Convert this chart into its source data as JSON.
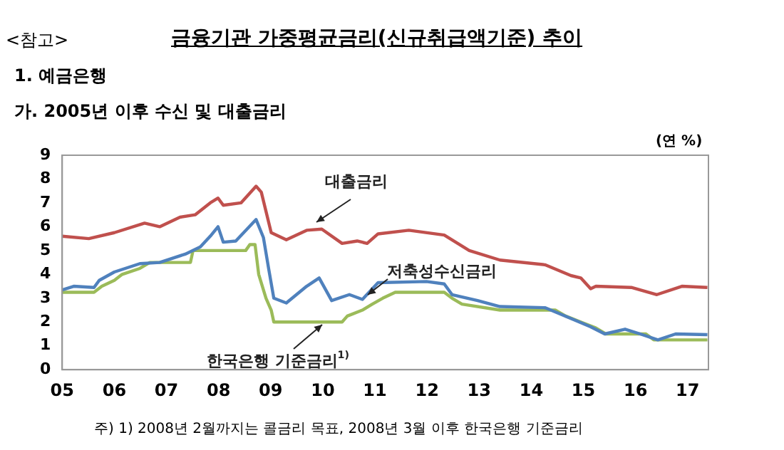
{
  "chart_data": {
    "type": "line",
    "title": "금융기관 가중평균금리(신규취급액기준) 추이",
    "subtitle": "1. 예금은행",
    "ylabel": "(연 %)",
    "annotations": [
      "<참고>",
      "가. 2005년 이후 수신 및 대출금리",
      "주) 1) 2008년 2월까지는 콜금리 목표, 2008년 3월 이후 한국은행 기준금리"
    ],
    "xlim": [
      2005,
      2017.4
    ],
    "xticks": [
      {
        "value": 2005,
        "label": "05"
      },
      {
        "value": 2006,
        "label": "06"
      },
      {
        "value": 2007,
        "label": "07"
      },
      {
        "value": 2008,
        "label": "08"
      },
      {
        "value": 2009,
        "label": "09"
      },
      {
        "value": 2010,
        "label": "10"
      },
      {
        "value": 2011,
        "label": "11"
      },
      {
        "value": 2012,
        "label": "12"
      },
      {
        "value": 2013,
        "label": "13"
      },
      {
        "value": 2014,
        "label": "14"
      },
      {
        "value": 2015,
        "label": "15"
      },
      {
        "value": 2016,
        "label": "16"
      },
      {
        "value": 2017,
        "label": "17"
      }
    ],
    "ylim": [
      0,
      9
    ],
    "yticks": [
      0,
      1,
      2,
      3,
      4,
      5,
      6,
      7,
      8,
      9
    ],
    "grid": false,
    "legend": false,
    "marker": "none",
    "line_style": "solid",
    "series": [
      {
        "name": "대출금리",
        "color": "#c0504d",
        "x": [
          2005,
          2005.51,
          2006,
          2006.58,
          2006.87,
          2007.26,
          2007.55,
          2007.84,
          2007.99,
          2008.09,
          2008.43,
          2008.72,
          2008.82,
          2009.01,
          2009.3,
          2009.69,
          2009.98,
          2010.37,
          2010.66,
          2010.85,
          2011.06,
          2011.65,
          2012.33,
          2012.81,
          2013.4,
          2014.27,
          2014.76,
          2014.95,
          2015.14,
          2015.24,
          2015.92,
          2016.41,
          2016.89,
          2017.38
        ],
        "values": [
          5.6,
          5.5,
          5.75,
          6.15,
          6.0,
          6.4,
          6.5,
          7.0,
          7.2,
          6.9,
          7.0,
          7.7,
          7.45,
          5.75,
          5.45,
          5.85,
          5.9,
          5.3,
          5.4,
          5.3,
          5.7,
          5.85,
          5.65,
          5.0,
          4.6,
          4.4,
          3.95,
          3.85,
          3.4,
          3.5,
          3.45,
          3.15,
          3.5,
          3.45
        ]
      },
      {
        "name": "저축성수신금리",
        "color": "#4f81bd",
        "x": [
          2005,
          2005.22,
          2005.61,
          2005.71,
          2006,
          2006.49,
          2006.87,
          2007.36,
          2007.65,
          2007.84,
          2007.99,
          2008.09,
          2008.33,
          2008.72,
          2008.86,
          2008.96,
          2009.06,
          2009.3,
          2009.69,
          2009.93,
          2010.17,
          2010.51,
          2010.76,
          2011.06,
          2011.99,
          2012.33,
          2012.48,
          2012.97,
          2013.4,
          2014.27,
          2014.76,
          2015.14,
          2015.41,
          2015.8,
          2016.09,
          2016.43,
          2016.77,
          2017.38
        ],
        "values": [
          3.35,
          3.5,
          3.45,
          3.75,
          4.1,
          4.45,
          4.5,
          4.85,
          5.15,
          5.6,
          6.0,
          5.35,
          5.4,
          6.3,
          5.55,
          4.25,
          3.0,
          2.8,
          3.5,
          3.85,
          2.9,
          3.15,
          2.95,
          3.65,
          3.7,
          3.6,
          3.15,
          2.9,
          2.65,
          2.6,
          2.15,
          1.8,
          1.5,
          1.7,
          1.5,
          1.25,
          1.5,
          1.47
        ]
      },
      {
        "name": "한국은행 기준금리$^{1)}$",
        "color": "#9bbb59",
        "x": [
          2005,
          2005.61,
          2005.76,
          2006,
          2006.15,
          2006.49,
          2006.68,
          2007.46,
          2007.51,
          2008.52,
          2008.6,
          2008.7,
          2008.77,
          2008.91,
          2009.01,
          2009.06,
          2010.37,
          2010.47,
          2010.76,
          2010.95,
          2011.15,
          2011.39,
          2012.33,
          2012.48,
          2012.67,
          2013.4,
          2014.46,
          2014.66,
          2014.95,
          2015.24,
          2015.43,
          2016.2,
          2016.35,
          2017.38
        ],
        "values": [
          3.25,
          3.25,
          3.5,
          3.75,
          4.0,
          4.25,
          4.5,
          4.5,
          5.0,
          5.0,
          5.25,
          5.25,
          4.0,
          3.0,
          2.5,
          2.0,
          2.0,
          2.25,
          2.5,
          2.75,
          3.0,
          3.25,
          3.25,
          3.0,
          2.75,
          2.5,
          2.5,
          2.25,
          2.0,
          1.75,
          1.5,
          1.5,
          1.25,
          1.25
        ]
      }
    ]
  }
}
